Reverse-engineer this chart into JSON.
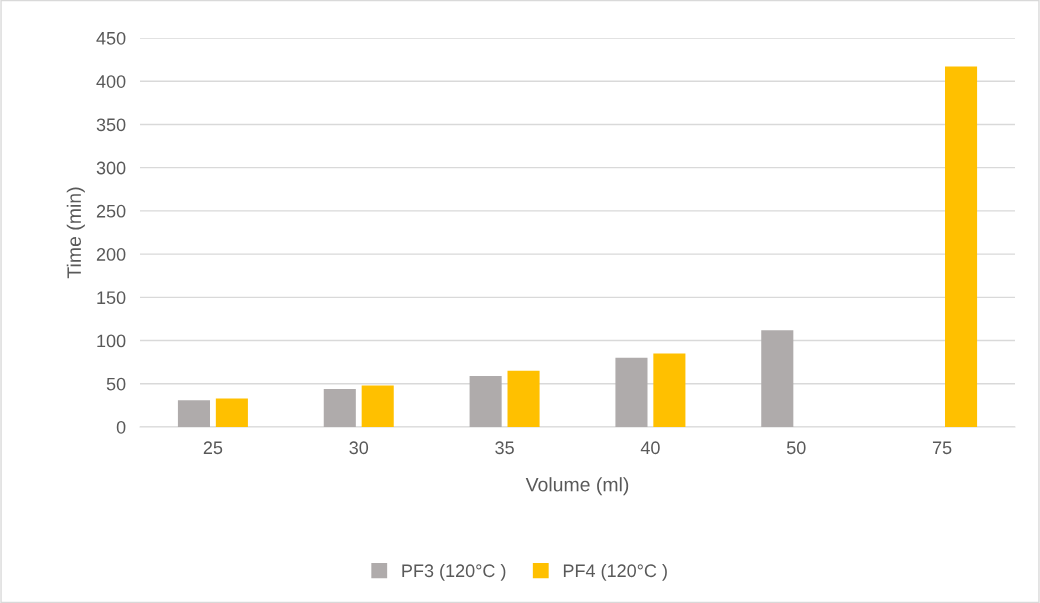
{
  "chart_data": {
    "type": "bar",
    "xlabel": "Volume (ml)",
    "ylabel": "Time (min)",
    "categories": [
      "25",
      "30",
      "35",
      "40",
      "50",
      "75"
    ],
    "series": [
      {
        "name": "PF3 (120°C )",
        "color": "#afabab",
        "values": [
          31,
          44,
          59,
          80,
          112,
          null
        ]
      },
      {
        "name": "PF4 (120°C )",
        "color": "#ffc000",
        "values": [
          33,
          48,
          65,
          85,
          null,
          417
        ]
      }
    ],
    "ylim": [
      0,
      450
    ],
    "yticks": [
      0,
      50,
      100,
      150,
      200,
      250,
      300,
      350,
      400,
      450
    ],
    "grid": "y",
    "legend": "bottom"
  }
}
